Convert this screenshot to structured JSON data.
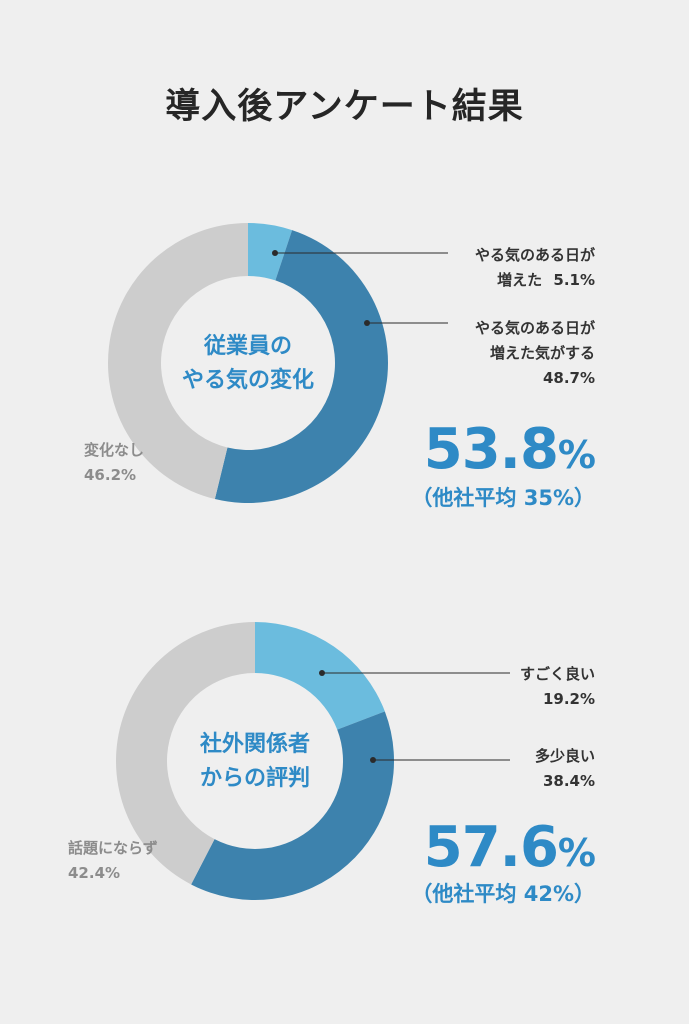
{
  "title": "導入後アンケート結果",
  "chart_data": [
    {
      "type": "pie",
      "center_label": [
        "従業員の",
        "やる気の変化"
      ],
      "slices": [
        {
          "label_lines": [
            "やる気のある日が",
            "増えた"
          ],
          "value": 5.1,
          "value_text": "5.1%",
          "color": "#6bbcde"
        },
        {
          "label_lines": [
            "やる気のある日が",
            "増えた気がする"
          ],
          "value": 48.7,
          "value_text": "48.7%",
          "color": "#3d82ad"
        },
        {
          "label_lines": [
            "変化なし"
          ],
          "value": 46.2,
          "value_text": "46.2%",
          "color": "#cdcdcd"
        }
      ],
      "highlight": {
        "value": "53.8",
        "unit": "%",
        "note": "（他社平均 35%）"
      }
    },
    {
      "type": "pie",
      "center_label": [
        "社外関係者",
        "からの評判"
      ],
      "slices": [
        {
          "label_lines": [
            "すごく良い"
          ],
          "value": 19.2,
          "value_text": "19.2%",
          "color": "#6bbcde"
        },
        {
          "label_lines": [
            "多少良い"
          ],
          "value": 38.4,
          "value_text": "38.4%",
          "color": "#3d82ad"
        },
        {
          "label_lines": [
            "話題にならず"
          ],
          "value": 42.4,
          "value_text": "42.4%",
          "color": "#cdcdcd"
        }
      ],
      "highlight": {
        "value": "57.6",
        "unit": "%",
        "note": "（他社平均 42%）"
      }
    }
  ]
}
